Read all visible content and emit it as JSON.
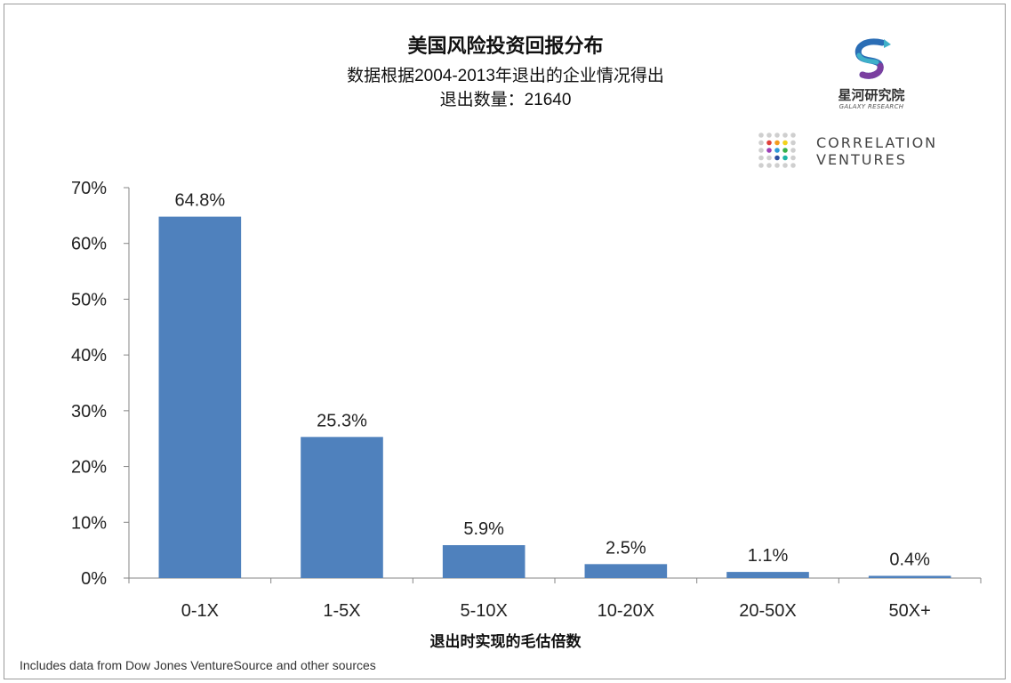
{
  "chart_data": {
    "type": "bar",
    "title": "美国风险投资回报分布",
    "subtitle": "数据根据2004-2013年退出的企业情况得出",
    "subtitle2": "退出数量：21640",
    "xlabel": "退出时实现的毛估倍数",
    "ylabel": "",
    "categories": [
      "0-1X",
      "1-5X",
      "5-10X",
      "10-20X",
      "20-50X",
      "50X+"
    ],
    "values": [
      64.8,
      25.3,
      5.9,
      2.5,
      1.1,
      0.4
    ],
    "data_labels": [
      "64.8%",
      "25.3%",
      "5.9%",
      "2.5%",
      "1.1%",
      "0.4%"
    ],
    "ylim": [
      0,
      70
    ],
    "yticks": [
      "0%",
      "10%",
      "20%",
      "30%",
      "40%",
      "50%",
      "60%",
      "70%"
    ],
    "grid": false,
    "bar_color": "#4f81bd"
  },
  "source": "Includes data from Dow Jones VentureSource and other sources",
  "logos": {
    "galaxy_name": "星河研究院",
    "galaxy_sub": "GALAXY RESEARCH",
    "correlation_line1": "CORRELATION",
    "correlation_line2": "VENTURES"
  }
}
